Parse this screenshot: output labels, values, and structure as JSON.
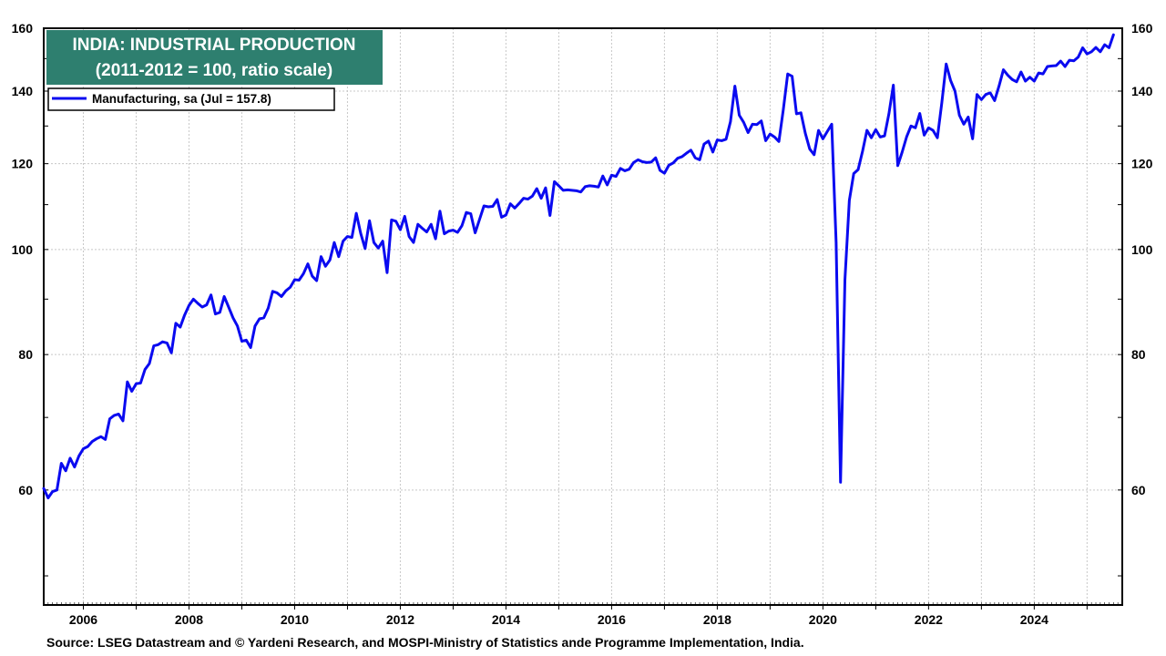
{
  "chart_data": {
    "type": "line",
    "title": "INDIA: INDUSTRIAL PRODUCTION",
    "subtitle": "(2011-2012 = 100, ratio scale)",
    "log_scale": true,
    "grid": true,
    "legend_position": "top-left",
    "y_ticks": [
      60,
      80,
      100,
      120,
      140,
      160
    ],
    "x_ticks": [
      "2006",
      "2008",
      "2010",
      "2012",
      "2014",
      "2016",
      "2018",
      "2020",
      "2022",
      "2024"
    ],
    "ylim": [
      47,
      160
    ],
    "xlim": [
      "2005-04",
      "2025-09"
    ],
    "series": [
      {
        "name": "Manufacturing, sa  (Jul = 157.8)",
        "color": "#0a0af0",
        "points": [
          [
            "2005-04",
            60.2
          ],
          [
            "2005-05",
            59.0
          ],
          [
            "2005-06",
            59.8
          ],
          [
            "2005-07",
            60.0
          ],
          [
            "2005-08",
            63.5
          ],
          [
            "2005-09",
            62.5
          ],
          [
            "2005-10",
            64.2
          ],
          [
            "2005-11",
            63.0
          ],
          [
            "2005-12",
            64.5
          ],
          [
            "2006-01",
            65.5
          ],
          [
            "2006-02",
            65.8
          ],
          [
            "2006-03",
            66.5
          ],
          [
            "2006-04",
            66.9
          ],
          [
            "2006-05",
            67.2
          ],
          [
            "2006-06",
            66.8
          ],
          [
            "2006-07",
            69.8
          ],
          [
            "2006-08",
            70.3
          ],
          [
            "2006-09",
            70.5
          ],
          [
            "2006-10",
            69.5
          ],
          [
            "2006-11",
            75.5
          ],
          [
            "2006-12",
            74.0
          ],
          [
            "2007-01",
            75.2
          ],
          [
            "2007-02",
            75.3
          ],
          [
            "2007-03",
            77.5
          ],
          [
            "2007-04",
            78.5
          ],
          [
            "2007-05",
            81.5
          ],
          [
            "2007-06",
            81.7
          ],
          [
            "2007-07",
            82.2
          ],
          [
            "2007-08",
            82.0
          ],
          [
            "2007-09",
            80.3
          ],
          [
            "2007-10",
            85.5
          ],
          [
            "2007-11",
            84.8
          ],
          [
            "2007-12",
            87.0
          ],
          [
            "2008-01",
            88.8
          ],
          [
            "2008-02",
            90.0
          ],
          [
            "2008-03",
            89.2
          ],
          [
            "2008-04",
            88.5
          ],
          [
            "2008-05",
            88.9
          ],
          [
            "2008-06",
            90.8
          ],
          [
            "2008-07",
            87.2
          ],
          [
            "2008-08",
            87.5
          ],
          [
            "2008-09",
            90.5
          ],
          [
            "2008-10",
            88.5
          ],
          [
            "2008-11",
            86.5
          ],
          [
            "2008-12",
            85.0
          ],
          [
            "2009-01",
            82.3
          ],
          [
            "2009-02",
            82.5
          ],
          [
            "2009-03",
            81.2
          ],
          [
            "2009-04",
            85.0
          ],
          [
            "2009-05",
            86.3
          ],
          [
            "2009-06",
            86.5
          ],
          [
            "2009-07",
            88.3
          ],
          [
            "2009-08",
            91.5
          ],
          [
            "2009-09",
            91.2
          ],
          [
            "2009-10",
            90.5
          ],
          [
            "2009-11",
            91.6
          ],
          [
            "2009-12",
            92.3
          ],
          [
            "2010-01",
            93.8
          ],
          [
            "2010-02",
            93.7
          ],
          [
            "2010-03",
            95.0
          ],
          [
            "2010-04",
            97.0
          ],
          [
            "2010-05",
            94.5
          ],
          [
            "2010-06",
            93.6
          ],
          [
            "2010-07",
            98.5
          ],
          [
            "2010-08",
            96.5
          ],
          [
            "2010-09",
            97.8
          ],
          [
            "2010-10",
            101.5
          ],
          [
            "2010-11",
            98.5
          ],
          [
            "2010-12",
            101.8
          ],
          [
            "2011-01",
            102.8
          ],
          [
            "2011-02",
            102.6
          ],
          [
            "2011-03",
            108.0
          ],
          [
            "2011-04",
            103.5
          ],
          [
            "2011-05",
            100.2
          ],
          [
            "2011-06",
            106.3
          ],
          [
            "2011-07",
            101.5
          ],
          [
            "2011-08",
            100.3
          ],
          [
            "2011-09",
            101.8
          ],
          [
            "2011-10",
            95.2
          ],
          [
            "2011-11",
            106.5
          ],
          [
            "2011-12",
            106.2
          ],
          [
            "2012-01",
            104.3
          ],
          [
            "2012-02",
            107.3
          ],
          [
            "2012-03",
            102.8
          ],
          [
            "2012-04",
            101.5
          ],
          [
            "2012-05",
            105.5
          ],
          [
            "2012-06",
            104.6
          ],
          [
            "2012-07",
            103.8
          ],
          [
            "2012-08",
            105.5
          ],
          [
            "2012-09",
            102.3
          ],
          [
            "2012-10",
            108.5
          ],
          [
            "2012-11",
            103.4
          ],
          [
            "2012-12",
            104.0
          ],
          [
            "2013-01",
            104.2
          ],
          [
            "2013-02",
            103.7
          ],
          [
            "2013-03",
            105.2
          ],
          [
            "2013-04",
            108.2
          ],
          [
            "2013-05",
            107.9
          ],
          [
            "2013-06",
            103.6
          ],
          [
            "2013-07",
            106.6
          ],
          [
            "2013-08",
            109.7
          ],
          [
            "2013-09",
            109.5
          ],
          [
            "2013-10",
            109.6
          ],
          [
            "2013-11",
            111.2
          ],
          [
            "2013-12",
            107.1
          ],
          [
            "2014-01",
            107.6
          ],
          [
            "2014-02",
            110.2
          ],
          [
            "2014-03",
            109.2
          ],
          [
            "2014-04",
            110.3
          ],
          [
            "2014-05",
            111.5
          ],
          [
            "2014-06",
            111.3
          ],
          [
            "2014-07",
            112.0
          ],
          [
            "2014-08",
            113.8
          ],
          [
            "2014-09",
            111.5
          ],
          [
            "2014-10",
            114.0
          ],
          [
            "2014-11",
            107.5
          ],
          [
            "2014-12",
            115.5
          ],
          [
            "2015-01",
            114.5
          ],
          [
            "2015-02",
            113.4
          ],
          [
            "2015-03",
            113.5
          ],
          [
            "2015-04",
            113.4
          ],
          [
            "2015-05",
            113.3
          ],
          [
            "2015-06",
            113.0
          ],
          [
            "2015-07",
            114.3
          ],
          [
            "2015-08",
            114.5
          ],
          [
            "2015-09",
            114.4
          ],
          [
            "2015-10",
            114.2
          ],
          [
            "2015-11",
            116.9
          ],
          [
            "2015-12",
            114.7
          ],
          [
            "2016-01",
            117.1
          ],
          [
            "2016-02",
            116.8
          ],
          [
            "2016-03",
            118.8
          ],
          [
            "2016-04",
            118.2
          ],
          [
            "2016-05",
            118.6
          ],
          [
            "2016-06",
            120.3
          ],
          [
            "2016-07",
            121.0
          ],
          [
            "2016-08",
            120.5
          ],
          [
            "2016-09",
            120.3
          ],
          [
            "2016-10",
            120.4
          ],
          [
            "2016-11",
            121.5
          ],
          [
            "2016-12",
            118.3
          ],
          [
            "2017-01",
            117.6
          ],
          [
            "2017-02",
            119.6
          ],
          [
            "2017-03",
            120.2
          ],
          [
            "2017-04",
            121.4
          ],
          [
            "2017-05",
            121.8
          ],
          [
            "2017-06",
            122.7
          ],
          [
            "2017-07",
            123.5
          ],
          [
            "2017-08",
            121.5
          ],
          [
            "2017-09",
            121.0
          ],
          [
            "2017-10",
            125.1
          ],
          [
            "2017-11",
            125.9
          ],
          [
            "2017-12",
            123.0
          ],
          [
            "2018-01",
            126.2
          ],
          [
            "2018-02",
            126.0
          ],
          [
            "2018-03",
            126.4
          ],
          [
            "2018-04",
            131.2
          ],
          [
            "2018-05",
            141.5
          ],
          [
            "2018-06",
            133.0
          ],
          [
            "2018-07",
            131.0
          ],
          [
            "2018-08",
            128.2
          ],
          [
            "2018-09",
            130.5
          ],
          [
            "2018-10",
            130.4
          ],
          [
            "2018-11",
            131.4
          ],
          [
            "2018-12",
            126.0
          ],
          [
            "2019-01",
            127.8
          ],
          [
            "2019-02",
            127.0
          ],
          [
            "2019-03",
            125.8
          ],
          [
            "2019-04",
            134.6
          ],
          [
            "2019-05",
            145.2
          ],
          [
            "2019-06",
            144.5
          ],
          [
            "2019-07",
            133.4
          ],
          [
            "2019-08",
            133.7
          ],
          [
            "2019-09",
            128.0
          ],
          [
            "2019-10",
            123.8
          ],
          [
            "2019-11",
            122.3
          ],
          [
            "2019-12",
            128.8
          ],
          [
            "2020-01",
            126.5
          ],
          [
            "2020-02",
            128.5
          ],
          [
            "2020-03",
            130.5
          ],
          [
            "2020-04",
            101.5
          ],
          [
            "2020-05",
            61.0
          ],
          [
            "2020-06",
            93.8
          ],
          [
            "2020-07",
            111.0
          ],
          [
            "2020-08",
            117.5
          ],
          [
            "2020-09",
            118.5
          ],
          [
            "2020-10",
            123.2
          ],
          [
            "2020-11",
            128.8
          ],
          [
            "2020-12",
            126.8
          ],
          [
            "2021-01",
            129.0
          ],
          [
            "2021-02",
            127.0
          ],
          [
            "2021-03",
            127.3
          ],
          [
            "2021-04",
            133.5
          ],
          [
            "2021-05",
            141.8
          ],
          [
            "2021-06",
            119.5
          ],
          [
            "2021-07",
            123.0
          ],
          [
            "2021-08",
            127.0
          ],
          [
            "2021-09",
            130.0
          ],
          [
            "2021-10",
            129.5
          ],
          [
            "2021-11",
            133.5
          ],
          [
            "2021-12",
            127.5
          ],
          [
            "2022-01",
            129.5
          ],
          [
            "2022-02",
            128.8
          ],
          [
            "2022-03",
            126.8
          ],
          [
            "2022-04",
            136.5
          ],
          [
            "2022-05",
            148.3
          ],
          [
            "2022-06",
            143.2
          ],
          [
            "2022-07",
            140.0
          ],
          [
            "2022-08",
            133.0
          ],
          [
            "2022-09",
            130.5
          ],
          [
            "2022-10",
            132.5
          ],
          [
            "2022-11",
            126.5
          ],
          [
            "2022-12",
            139.0
          ],
          [
            "2023-01",
            137.5
          ],
          [
            "2023-02",
            139.0
          ],
          [
            "2023-03",
            139.5
          ],
          [
            "2023-04",
            137.2
          ],
          [
            "2023-05",
            141.5
          ],
          [
            "2023-06",
            146.5
          ],
          [
            "2023-07",
            144.8
          ],
          [
            "2023-08",
            143.5
          ],
          [
            "2023-09",
            142.8
          ],
          [
            "2023-10",
            145.8
          ],
          [
            "2023-11",
            143.0
          ],
          [
            "2023-12",
            144.2
          ],
          [
            "2024-01",
            143.0
          ],
          [
            "2024-02",
            145.5
          ],
          [
            "2024-03",
            145.2
          ],
          [
            "2024-04",
            147.5
          ],
          [
            "2024-05",
            147.7
          ],
          [
            "2024-06",
            147.8
          ],
          [
            "2024-07",
            149.2
          ],
          [
            "2024-08",
            147.5
          ],
          [
            "2024-09",
            149.5
          ],
          [
            "2024-10",
            149.3
          ],
          [
            "2024-11",
            150.5
          ],
          [
            "2024-12",
            153.5
          ],
          [
            "2025-01",
            151.5
          ],
          [
            "2025-02",
            152.2
          ],
          [
            "2025-03",
            153.6
          ],
          [
            "2025-04",
            152.2
          ],
          [
            "2025-05",
            154.5
          ],
          [
            "2025-06",
            153.5
          ],
          [
            "2025-07",
            157.8
          ]
        ]
      }
    ],
    "source": "Source: LSEG Datastream and © Yardeni Research, and MOSPI-Ministry of Statistics ande Programme Implementation, India."
  },
  "colors": {
    "title_box": "#2e7f6f",
    "title_text": "#ffffff",
    "line": "#0a0af0",
    "grid": "#c8c8c8",
    "axis": "#000000"
  }
}
